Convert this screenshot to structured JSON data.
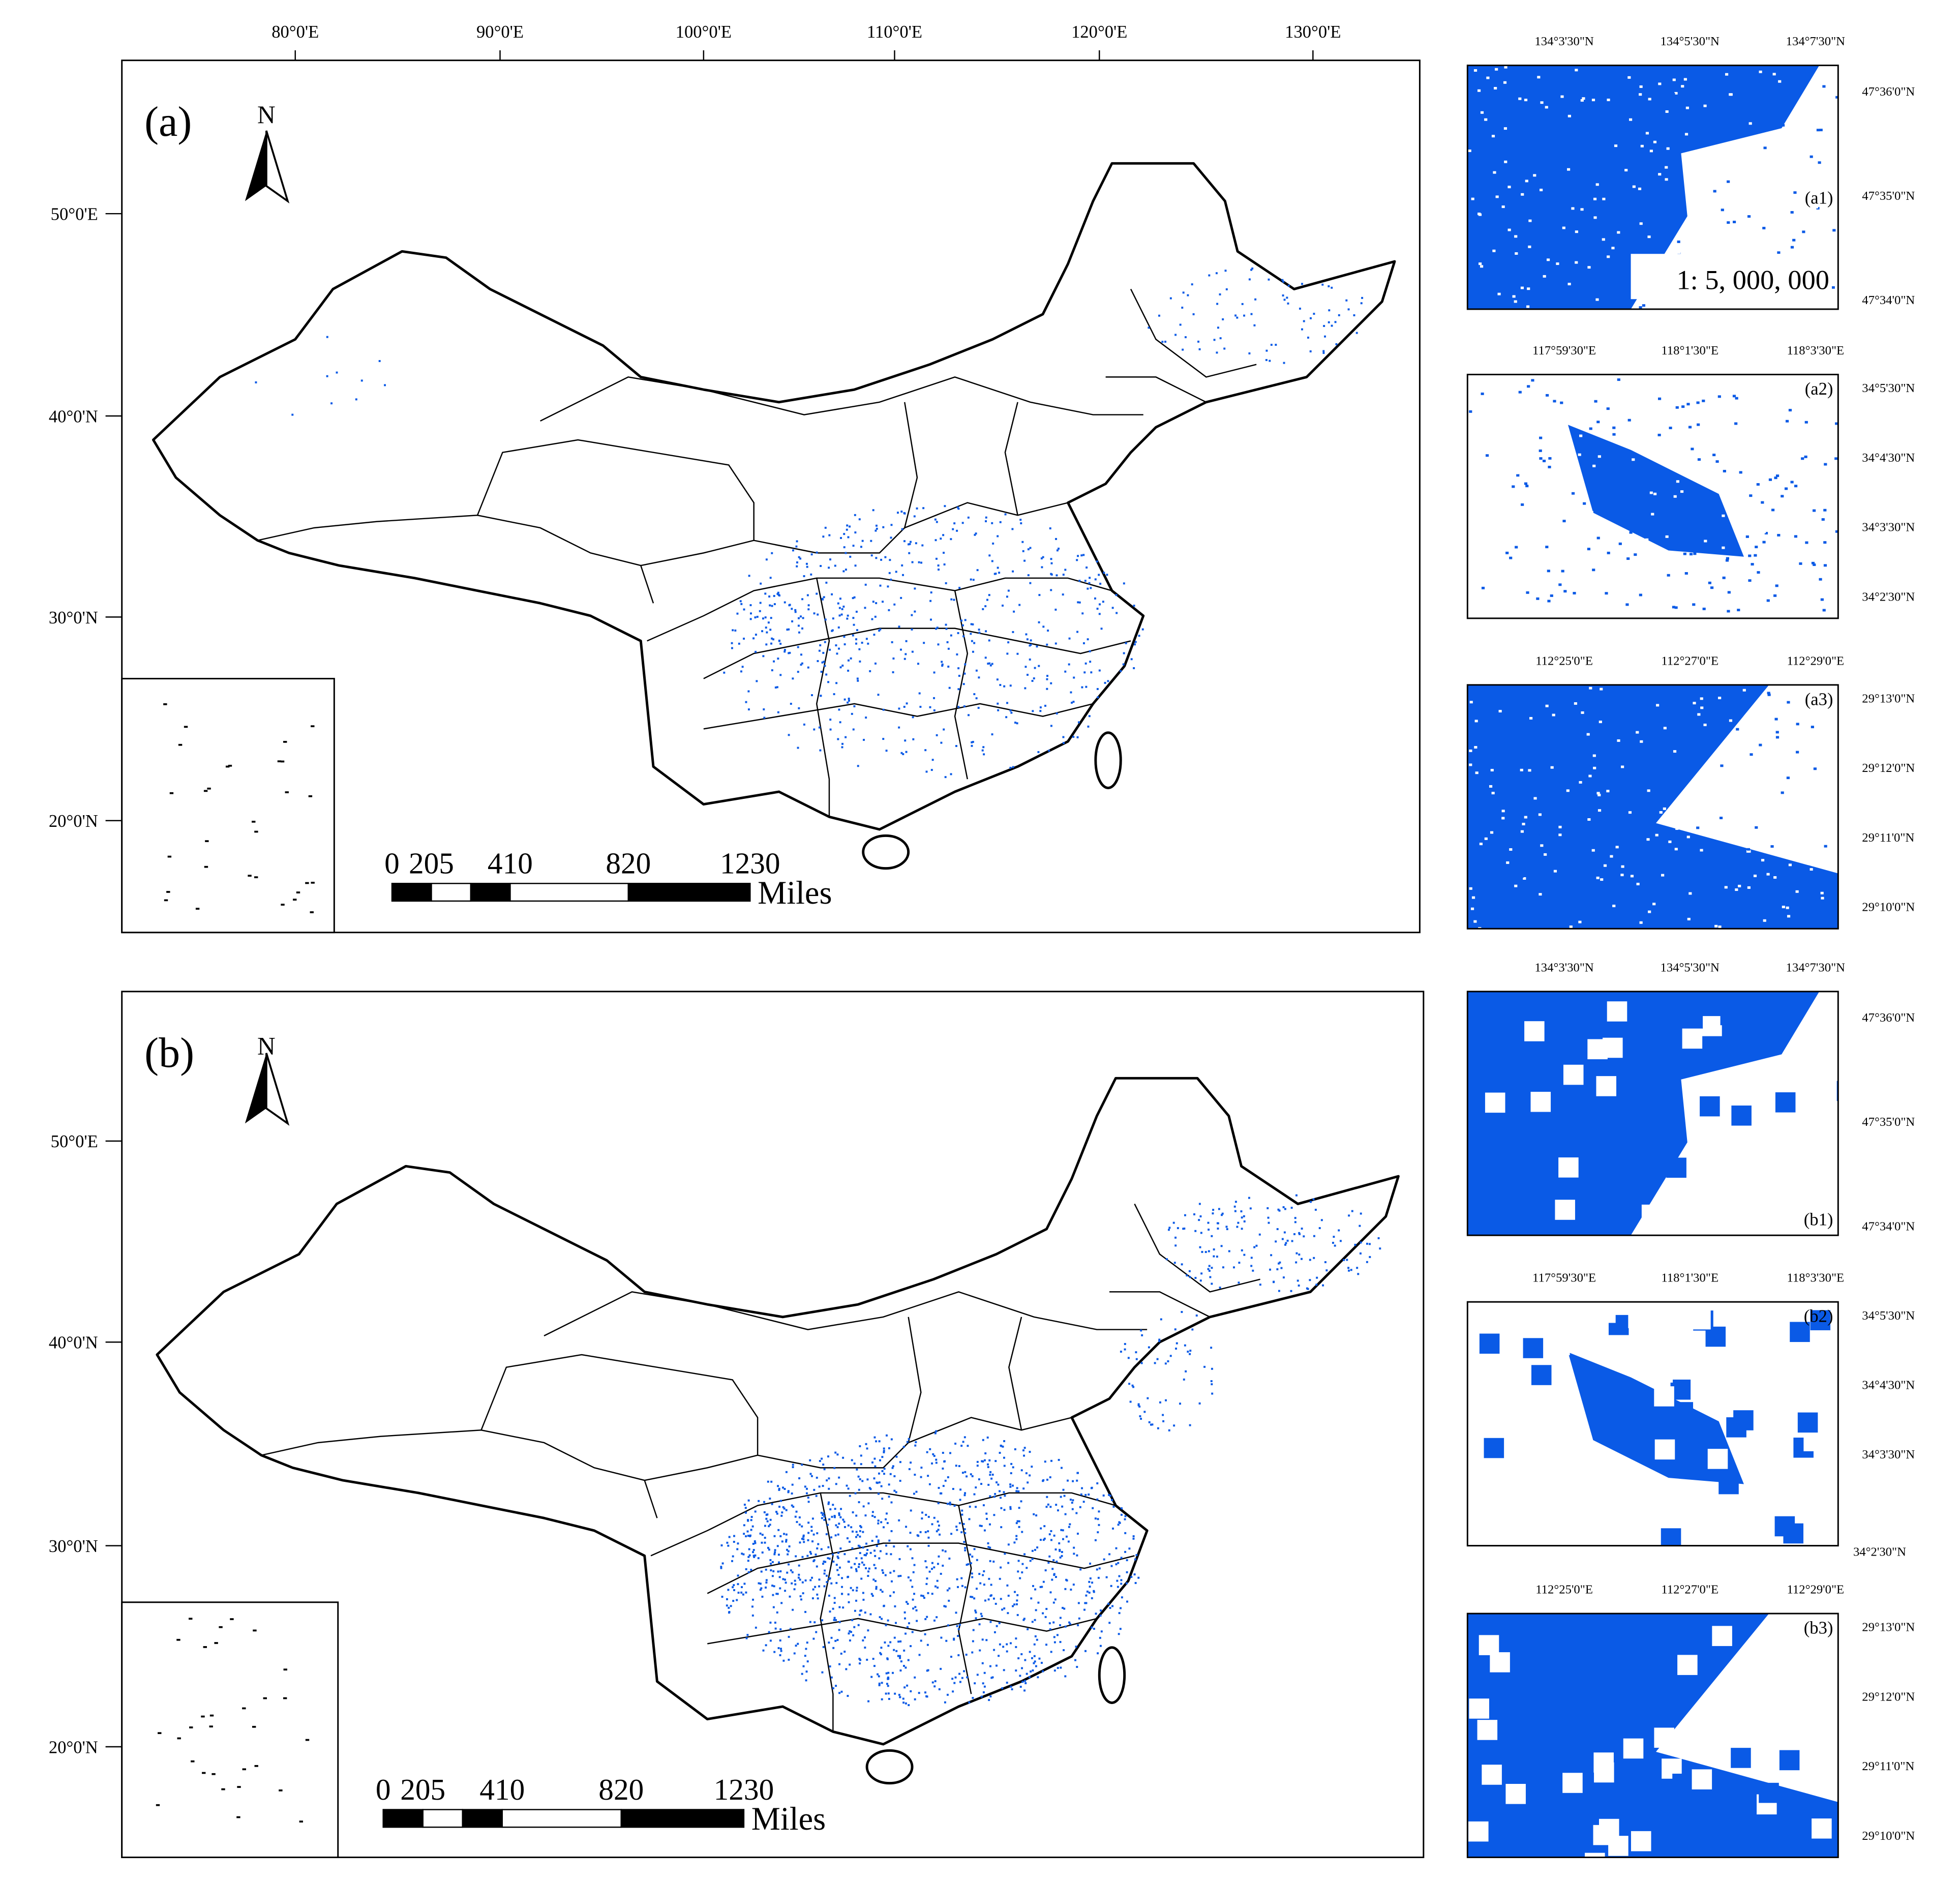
{
  "panels": [
    {
      "label": "(a)",
      "north": "N",
      "lon_labels": [
        "80°0'E",
        "90°0'E",
        "100°0'E",
        "110°0'E",
        "120°0'E",
        "130°0'E"
      ],
      "lat_labels": [
        "50°0'E",
        "40°0'N",
        "30°0'N",
        "20°0'N"
      ],
      "scale_labels": [
        "0",
        "205",
        "410",
        "820",
        "1230"
      ],
      "scale_unit": "Miles"
    },
    {
      "label": "(b)",
      "north": "N",
      "lat_labels": [
        "50°0'E",
        "40°0'N",
        "30°0'N",
        "20°0'N"
      ],
      "scale_labels": [
        "0",
        "205",
        "410",
        "820",
        "1230"
      ],
      "scale_unit": "Miles"
    }
  ],
  "insets": [
    {
      "label": "(a1)",
      "top_labels": [
        "134°3'30\"N",
        "134°5'30\"N",
        "134°7'30\"N"
      ],
      "right_labels": [
        "47°36'0\"N",
        "47°35'0\"N",
        "47°34'0\"N"
      ],
      "scale_text": "1: 5, 000, 000"
    },
    {
      "label": "(a2)",
      "top_labels": [
        "117°59'30\"E",
        "118°1'30\"E",
        "118°3'30\"E"
      ],
      "right_labels": [
        "34°5'30\"N",
        "34°4'30\"N",
        "34°3'30\"N",
        "34°2'30\"N"
      ]
    },
    {
      "label": "(a3)",
      "top_labels": [
        "112°25'0\"E",
        "112°27'0\"E",
        "112°29'0\"E"
      ],
      "right_labels": [
        "29°13'0\"N",
        "29°12'0\"N",
        "29°11'0\"N",
        "29°10'0\"N"
      ]
    },
    {
      "label": "(b1)",
      "top_labels": [
        "134°3'30\"N",
        "134°5'30\"N",
        "134°7'30\"N"
      ],
      "right_labels": [
        "47°36'0\"N",
        "47°35'0\"N",
        "47°34'0\"N"
      ]
    },
    {
      "label": "(b2)",
      "top_labels": [
        "117°59'30\"E",
        "118°1'30\"E",
        "118°3'30\"E"
      ],
      "right_labels": [
        "34°5'30\"N",
        "34°4'30\"N",
        "34°3'30\"N",
        "34°2'30\"N"
      ]
    },
    {
      "label": "(b3)",
      "top_labels": [
        "112°25'0\"E",
        "112°27'0\"E",
        "112°29'0\"E"
      ],
      "right_labels": [
        "29°13'0\"N",
        "29°12'0\"N",
        "29°11'0\"N",
        "29°10'0\"N"
      ]
    }
  ]
}
